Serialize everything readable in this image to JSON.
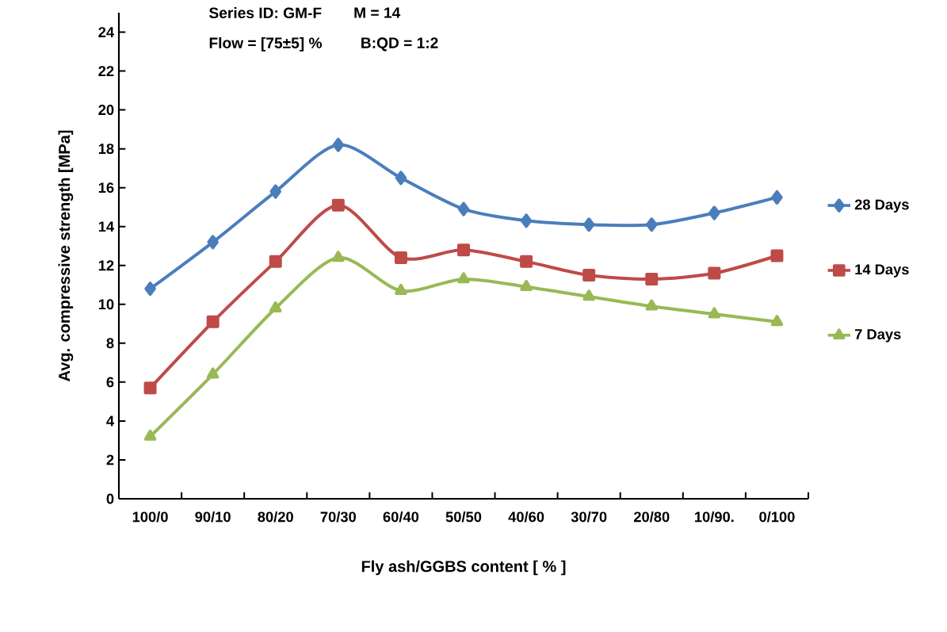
{
  "chart_data": {
    "type": "line",
    "annotations": [
      "Series ID: GM-F",
      "M = 14",
      "Flow = [75±5] %",
      "B:QD = 1:2"
    ],
    "xlabel": "Fly ash/GGBS  content [ % ]",
    "ylabel": "Avg. compressive  strength  [MPa]",
    "categories": [
      "100/0",
      "90/10",
      "80/20",
      "70/30",
      "60/40",
      "50/50",
      "40/60",
      "30/70",
      "20/80",
      "10/90.",
      "0/100"
    ],
    "series": [
      {
        "name": "28 Days",
        "color": "#4a7ebb",
        "marker": "diamond",
        "values": [
          10.8,
          13.2,
          15.8,
          18.2,
          16.5,
          14.9,
          14.3,
          14.1,
          14.1,
          14.7,
          15.5
        ]
      },
      {
        "name": "14 Days",
        "color": "#be4b48",
        "marker": "square",
        "values": [
          5.7,
          9.1,
          12.2,
          15.1,
          12.4,
          12.8,
          12.2,
          11.5,
          11.3,
          11.6,
          12.5
        ]
      },
      {
        "name": "7 Days",
        "color": "#98b954",
        "marker": "triangle",
        "values": [
          3.2,
          6.4,
          9.8,
          12.4,
          10.7,
          11.3,
          10.9,
          10.4,
          9.9,
          9.5,
          9.1
        ]
      }
    ],
    "ylim": [
      0,
      25
    ],
    "yticks": [
      0,
      2,
      4,
      6,
      8,
      10,
      12,
      14,
      16,
      18,
      20,
      22,
      24
    ],
    "line_style": "solid",
    "legend": "right"
  }
}
